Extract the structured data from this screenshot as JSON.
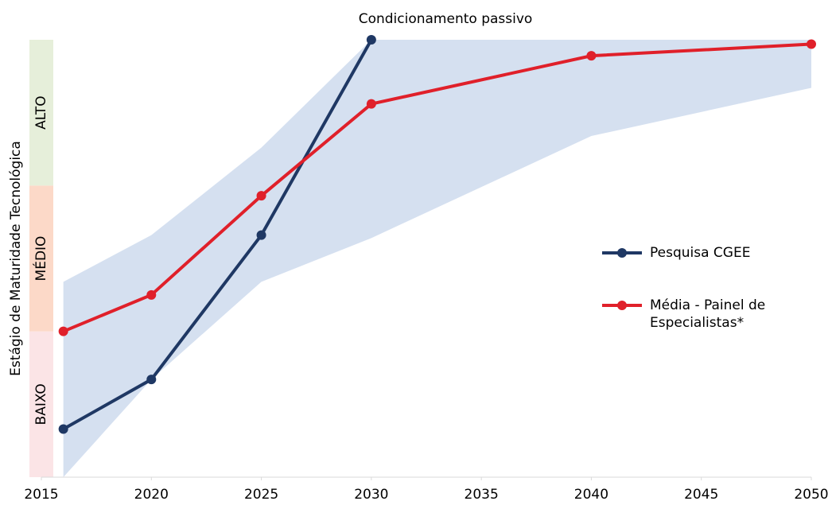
{
  "chart_data": {
    "type": "line",
    "title": "Condicionamento passivo",
    "y_label": "Estágio de Maturidade Tecnológica",
    "x": [
      2016,
      2020,
      2025,
      2030,
      2040,
      2050
    ],
    "xlim": [
      2015,
      2050
    ],
    "xticks": [
      2015,
      2020,
      2025,
      2030,
      2035,
      2040,
      2045,
      2050
    ],
    "ylim": [
      0,
      3
    ],
    "y_bands": [
      {
        "label": "BAIXO",
        "range": [
          0,
          1
        ],
        "color": "#fbe4e6"
      },
      {
        "label": "MÉDIO",
        "range": [
          1,
          2
        ],
        "color": "#fcd9c8"
      },
      {
        "label": "ALTO",
        "range": [
          2,
          3
        ],
        "color": "#e6efda"
      }
    ],
    "range_band": {
      "color": "#d5e0f0",
      "upper": [
        1.34,
        1.66,
        2.26,
        3,
        3,
        3
      ],
      "lower": [
        0,
        0.67,
        1.34,
        1.64,
        2.34,
        2.67
      ]
    },
    "series": [
      {
        "name": "Pesquisa CGEE",
        "color": "#1f3864",
        "values": [
          0.33,
          0.67,
          1.66,
          3,
          null,
          null
        ]
      },
      {
        "name": "Média - Painel de Especialistas*",
        "color": "#e0202a",
        "values": [
          1.0,
          1.25,
          1.93,
          2.56,
          2.89,
          2.97
        ]
      }
    ]
  }
}
